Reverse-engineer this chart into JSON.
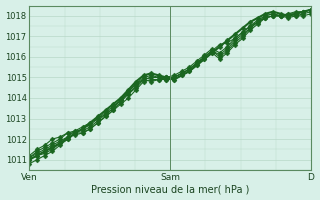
{
  "title": "",
  "xlabel": "Pression niveau de la mer( hPa )",
  "ylabel": "",
  "bg_color": "#d8f0e8",
  "grid_color": "#b8d8c8",
  "line_color": "#1a6620",
  "ylim": [
    1010.5,
    1018.5
  ],
  "xlim": [
    0,
    48
  ],
  "xtick_positions": [
    0,
    24,
    48
  ],
  "xtick_labels": [
    "Ven",
    "Sam",
    "D"
  ],
  "ytick_positions": [
    1011,
    1012,
    1013,
    1014,
    1015,
    1016,
    1017,
    1018
  ],
  "series": [
    [
      1011.0,
      1011.2,
      1011.4,
      1011.6,
      1011.8,
      1012.0,
      1012.3,
      1012.5,
      1012.8,
      1013.1,
      1013.4,
      1013.7,
      1014.0,
      1014.4,
      1014.8,
      1015.1,
      1015.2,
      1015.1,
      1015.0,
      1014.9,
      1015.1,
      1015.3,
      1015.6,
      1015.9,
      1016.2,
      1016.5,
      1016.8,
      1017.1,
      1017.4,
      1017.7,
      1017.9,
      1018.1,
      1018.2,
      1018.1,
      1018.0,
      1018.1,
      1018.2,
      1018.3
    ],
    [
      1010.8,
      1011.0,
      1011.2,
      1011.4,
      1011.7,
      1012.0,
      1012.3,
      1012.5,
      1012.7,
      1013.0,
      1013.3,
      1013.6,
      1013.9,
      1014.3,
      1014.7,
      1014.9,
      1014.8,
      1014.9,
      1015.0,
      1015.1,
      1015.3,
      1015.5,
      1015.8,
      1016.1,
      1016.4,
      1016.2,
      1016.5,
      1016.9,
      1017.2,
      1017.5,
      1017.7,
      1017.9,
      1018.0,
      1018.0,
      1018.1,
      1018.2,
      1018.2,
      1018.3
    ],
    [
      1011.1,
      1011.3,
      1011.5,
      1011.7,
      1011.9,
      1012.1,
      1012.2,
      1012.3,
      1012.5,
      1012.8,
      1013.1,
      1013.4,
      1013.8,
      1014.2,
      1014.6,
      1014.9,
      1015.0,
      1015.0,
      1015.0,
      1015.0,
      1015.2,
      1015.4,
      1015.7,
      1016.0,
      1016.3,
      1016.6,
      1016.7,
      1016.9,
      1017.2,
      1017.5,
      1017.8,
      1018.0,
      1018.1,
      1018.0,
      1018.0,
      1018.1,
      1018.2,
      1018.3
    ],
    [
      1011.0,
      1011.2,
      1011.3,
      1011.5,
      1011.8,
      1012.1,
      1012.4,
      1012.6,
      1012.8,
      1013.0,
      1013.2,
      1013.5,
      1013.9,
      1014.3,
      1014.7,
      1015.0,
      1015.1,
      1015.0,
      1014.9,
      1015.0,
      1015.2,
      1015.4,
      1015.7,
      1016.0,
      1016.3,
      1016.1,
      1016.4,
      1016.8,
      1017.1,
      1017.4,
      1017.7,
      1017.9,
      1018.0,
      1018.0,
      1018.1,
      1018.1,
      1018.2,
      1018.3
    ],
    [
      1011.1,
      1011.4,
      1011.6,
      1011.8,
      1012.0,
      1012.3,
      1012.4,
      1012.4,
      1012.6,
      1012.9,
      1013.2,
      1013.5,
      1013.9,
      1014.2,
      1014.5,
      1014.9,
      1015.0,
      1015.0,
      1015.0,
      1015.0,
      1015.2,
      1015.4,
      1015.7,
      1016.0,
      1016.3,
      1016.0,
      1016.3,
      1016.7,
      1017.0,
      1017.4,
      1017.7,
      1018.0,
      1018.1,
      1018.0,
      1018.0,
      1018.0,
      1018.1,
      1018.2
    ],
    [
      1011.2,
      1011.5,
      1011.7,
      1012.0,
      1012.1,
      1012.3,
      1012.3,
      1012.3,
      1012.5,
      1012.8,
      1013.1,
      1013.4,
      1013.7,
      1014.0,
      1014.4,
      1014.8,
      1014.9,
      1014.9,
      1014.9,
      1014.9,
      1015.1,
      1015.3,
      1015.6,
      1015.9,
      1016.2,
      1015.9,
      1016.2,
      1016.6,
      1016.9,
      1017.3,
      1017.6,
      1017.9,
      1018.0,
      1018.0,
      1017.9,
      1018.0,
      1018.0,
      1018.1
    ]
  ]
}
